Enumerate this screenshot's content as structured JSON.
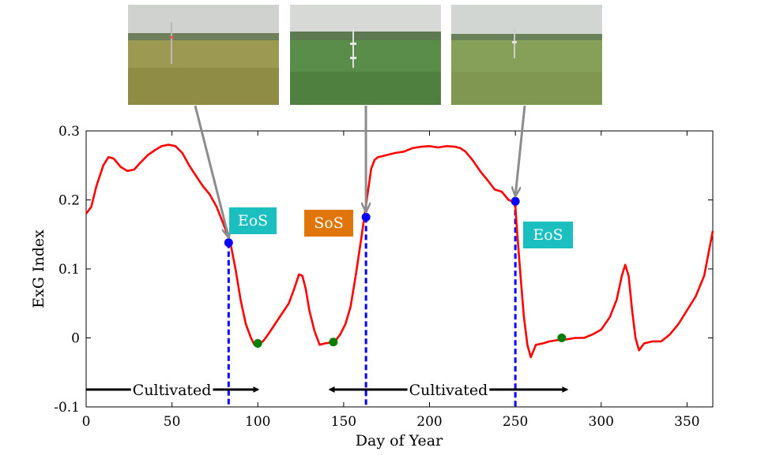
{
  "chart_data": {
    "type": "line",
    "xlabel": "Day of Year",
    "ylabel": "ExG Index",
    "xlim": [
      0,
      365
    ],
    "ylim": [
      -0.1,
      0.3
    ],
    "xticks": [
      0,
      50,
      100,
      150,
      200,
      250,
      300,
      350
    ],
    "yticks": [
      -0.1,
      0,
      0.1,
      0.2,
      0.3
    ],
    "ytick_labels": [
      "-0.1",
      "0",
      "0.1",
      "0.2",
      "0.3"
    ],
    "line_color": "#ff0000",
    "series": [
      {
        "x": [
          0,
          3,
          6,
          10,
          13,
          16,
          20,
          24,
          28,
          32,
          36,
          40,
          44,
          48,
          52,
          56,
          60,
          64,
          68,
          72,
          76,
          80,
          84,
          87,
          90,
          93,
          96,
          98,
          100,
          103,
          106,
          110,
          114,
          118,
          121,
          124,
          126,
          128,
          130,
          133,
          136,
          139,
          142,
          145,
          148,
          151,
          154,
          157,
          160,
          162,
          164,
          166,
          168,
          170,
          172,
          175,
          180,
          185,
          190,
          195,
          200,
          205,
          210,
          215,
          218,
          221,
          225,
          230,
          234,
          238,
          242,
          246,
          248,
          250,
          251,
          253,
          255,
          257,
          259,
          262,
          266,
          270,
          275,
          280,
          285,
          290,
          295,
          300,
          305,
          309,
          312,
          314,
          316,
          318,
          320,
          322,
          325,
          330,
          335,
          340,
          345,
          350,
          355,
          360,
          365
        ],
        "y": [
          0.18,
          0.19,
          0.22,
          0.25,
          0.262,
          0.26,
          0.248,
          0.242,
          0.244,
          0.255,
          0.265,
          0.272,
          0.278,
          0.28,
          0.278,
          0.268,
          0.25,
          0.235,
          0.22,
          0.208,
          0.19,
          0.165,
          0.138,
          0.1,
          0.055,
          0.02,
          0.0,
          -0.01,
          -0.008,
          -0.005,
          0.005,
          0.02,
          0.035,
          0.05,
          0.07,
          0.092,
          0.09,
          0.07,
          0.04,
          0.01,
          -0.01,
          -0.008,
          -0.007,
          -0.005,
          0.005,
          0.02,
          0.045,
          0.09,
          0.14,
          0.175,
          0.21,
          0.245,
          0.258,
          0.262,
          0.263,
          0.265,
          0.268,
          0.27,
          0.275,
          0.277,
          0.278,
          0.276,
          0.278,
          0.277,
          0.275,
          0.27,
          0.258,
          0.24,
          0.228,
          0.215,
          0.212,
          0.2,
          0.198,
          0.19,
          0.155,
          0.09,
          0.03,
          -0.01,
          -0.028,
          -0.01,
          -0.008,
          -0.005,
          -0.003,
          -0.002,
          0.0,
          0.0,
          0.005,
          0.012,
          0.03,
          0.055,
          0.09,
          0.106,
          0.09,
          0.04,
          0.0,
          -0.018,
          -0.008,
          -0.005,
          -0.005,
          0.005,
          0.02,
          0.04,
          0.06,
          0.09,
          0.155
        ]
      }
    ],
    "markers": [
      {
        "x": 83,
        "y": 0.138,
        "color": "#0000ff"
      },
      {
        "x": 163,
        "y": 0.175,
        "color": "#0000ff"
      },
      {
        "x": 250,
        "y": 0.198,
        "color": "#0000ff"
      },
      {
        "x": 100,
        "y": -0.008,
        "color": "#008000"
      },
      {
        "x": 144,
        "y": -0.006,
        "color": "#008000"
      },
      {
        "x": 277,
        "y": 0.0,
        "color": "#008000"
      }
    ],
    "vlines": [
      {
        "x": 83,
        "color": "#0000ff"
      },
      {
        "x": 163,
        "color": "#0000ff"
      },
      {
        "x": 250,
        "color": "#0000ff"
      }
    ],
    "annotations": [
      {
        "text": "EoS",
        "color": "#1bbfbf"
      },
      {
        "text": "SoS",
        "color": "#e0760a"
      },
      {
        "text": "EoS",
        "color": "#1bbfbf"
      }
    ],
    "ranges": [
      {
        "text": "Cultivated",
        "x_start": 0,
        "x_end": 100
      },
      {
        "text": "Cultivated",
        "x_start": 142,
        "x_end": 280
      }
    ],
    "photo_links": [
      {
        "x": 83,
        "y": 0.138
      },
      {
        "x": 163,
        "y": 0.175
      },
      {
        "x": 250,
        "y": 0.198
      }
    ]
  }
}
